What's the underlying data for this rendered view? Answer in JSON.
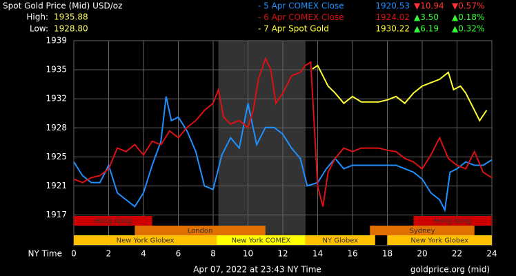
{
  "chart_data": {
    "type": "line",
    "title": "Spot Gold Price (Mid) USD/oz",
    "high_label": "High:",
    "high": "1935.88",
    "low_label": "Low:",
    "low": "1928.80",
    "x_axis_label": "NY Time",
    "footer": "Apr 07, 2022 at 23:43 NY Time",
    "source": "goldprice.org (mid)",
    "xlim": [
      0,
      24
    ],
    "xticks": [
      0,
      2,
      4,
      6,
      8,
      10,
      12,
      14,
      16,
      18,
      20,
      22,
      24
    ],
    "ylim": [
      1913.6,
      1939.0
    ],
    "yticks": [
      {
        "value": 1917.4,
        "label": "1917"
      },
      {
        "value": 1921.0,
        "label": "1921"
      },
      {
        "value": 1924.6,
        "label": "1925"
      },
      {
        "value": 1928.2,
        "label": "1928"
      },
      {
        "value": 1931.8,
        "label": "1932"
      },
      {
        "value": 1935.4,
        "label": "1935"
      },
      {
        "value": 1939.0,
        "label": "1939"
      }
    ],
    "grid": true,
    "highlight": [
      8.3,
      13.3
    ],
    "sessions": [
      {
        "name": "Hong Kong",
        "start": 0,
        "end": 4.5,
        "row": 0,
        "color": "#cc0000"
      },
      {
        "name": "Hong Kong",
        "start": 19.5,
        "end": 24,
        "row": 0,
        "color": "#cc0000"
      },
      {
        "name": "London",
        "start": 3.5,
        "end": 11,
        "row": 1,
        "color": "#e07000"
      },
      {
        "name": "Sydney",
        "start": 17,
        "end": 23,
        "row": 1,
        "color": "#e07000"
      },
      {
        "name": "New York Globex",
        "start": 0,
        "end": 8.2,
        "row": 2,
        "color": "#ffc000"
      },
      {
        "name": "New York COMEX",
        "start": 8.2,
        "end": 13.3,
        "row": 2,
        "color": "#ffff00"
      },
      {
        "name": "NY Globex",
        "start": 13.3,
        "end": 17.3,
        "row": 2,
        "color": "#ffc000"
      },
      {
        "name": "New York Globex",
        "start": 18,
        "end": 24,
        "row": 2,
        "color": "#ffc000"
      }
    ],
    "series": [
      {
        "name": "- 5 Apr COMEX Close",
        "color": "#1e90ff",
        "close": "1920.53",
        "change": "▼10.94",
        "change_pct": "▼0.57%",
        "x": [
          0,
          0.5,
          1,
          1.5,
          2,
          2.5,
          3,
          3.5,
          4,
          4.5,
          5,
          5.3,
          5.6,
          6,
          6.5,
          7,
          7.5,
          8,
          8.5,
          9,
          9.5,
          10,
          10.5,
          11,
          11.5,
          12,
          12.5,
          13,
          13.4,
          14,
          14.5,
          15,
          15.5,
          16,
          16.5,
          17,
          17.5,
          18,
          18.5,
          19,
          19.5,
          20,
          20.5,
          21,
          21.3,
          21.6,
          22,
          22.5,
          23,
          23.5,
          24
        ],
        "values": [
          1923.98,
          1922.28,
          1921.42,
          1921.42,
          1923.56,
          1920.14,
          1919.29,
          1918.44,
          1920.14,
          1923.56,
          1926.54,
          1932.09,
          1929.1,
          1929.53,
          1927.82,
          1925.26,
          1921.0,
          1920.57,
          1924.84,
          1926.97,
          1925.69,
          1931.24,
          1926.12,
          1928.25,
          1928.25,
          1927.4,
          1925.69,
          1924.41,
          1921.0,
          1921.42,
          1923.13,
          1924.41,
          1923.13,
          1923.56,
          1923.56,
          1923.56,
          1923.56,
          1923.56,
          1923.56,
          1923.13,
          1922.7,
          1921.85,
          1920.14,
          1919.29,
          1918.01,
          1922.7,
          1923.13,
          1923.98,
          1923.56,
          1923.56,
          1924.24
        ]
      },
      {
        "name": "- 6 Apr COMEX Close",
        "color": "#dd1111",
        "close": "1924.02",
        "change": "▲3.50",
        "change_pct": "▲0.18%",
        "x": [
          0,
          0.5,
          1,
          1.5,
          2,
          2.5,
          3,
          3.5,
          4,
          4.5,
          5,
          5.5,
          6,
          6.5,
          7,
          7.5,
          8,
          8.3,
          8.6,
          9,
          9.5,
          10,
          10.3,
          10.6,
          11,
          11.3,
          11.6,
          12,
          12.5,
          13,
          13.3,
          13.6,
          14,
          14.3,
          14.6,
          15,
          15.5,
          16,
          16.5,
          17,
          17.5,
          18,
          18.5,
          19,
          19.5,
          20,
          20.5,
          21,
          21.5,
          22,
          22.5,
          23,
          23.5,
          24
        ],
        "values": [
          1921.85,
          1921.42,
          1922.02,
          1922.28,
          1923.13,
          1925.69,
          1925.26,
          1926.12,
          1924.84,
          1926.54,
          1926.12,
          1927.82,
          1926.97,
          1928.25,
          1929.1,
          1930.38,
          1931.24,
          1932.94,
          1929.53,
          1928.68,
          1929.1,
          1928.25,
          1930.38,
          1934.22,
          1936.78,
          1935.5,
          1931.24,
          1932.52,
          1934.65,
          1935.08,
          1935.93,
          1936.35,
          1921.0,
          1918.44,
          1922.7,
          1924.41,
          1925.69,
          1925.26,
          1925.69,
          1925.69,
          1925.69,
          1925.43,
          1925.26,
          1924.41,
          1923.98,
          1923.13,
          1924.84,
          1926.97,
          1924.41,
          1923.56,
          1923.13,
          1925.26,
          1922.7,
          1922.02
        ]
      },
      {
        "name": "- 7 Apr Spot Gold",
        "color": "#ffff33",
        "close": "1930.22",
        "change": "▲6.19",
        "change_pct": "▲0.32%",
        "x": [
          13.7,
          14,
          14.3,
          14.6,
          15,
          15.5,
          16,
          16.5,
          17,
          17.5,
          18,
          18.5,
          19,
          19.5,
          20,
          20.5,
          21,
          21.5,
          21.8,
          22.2,
          22.5,
          23,
          23.3,
          23.7
        ],
        "values": [
          1935.5,
          1935.93,
          1934.65,
          1933.37,
          1932.52,
          1931.24,
          1932.09,
          1931.41,
          1931.41,
          1931.41,
          1931.66,
          1932.09,
          1931.24,
          1932.52,
          1933.37,
          1933.8,
          1934.22,
          1935.08,
          1932.94,
          1933.37,
          1932.52,
          1930.38,
          1929.1,
          1930.38
        ]
      }
    ]
  }
}
